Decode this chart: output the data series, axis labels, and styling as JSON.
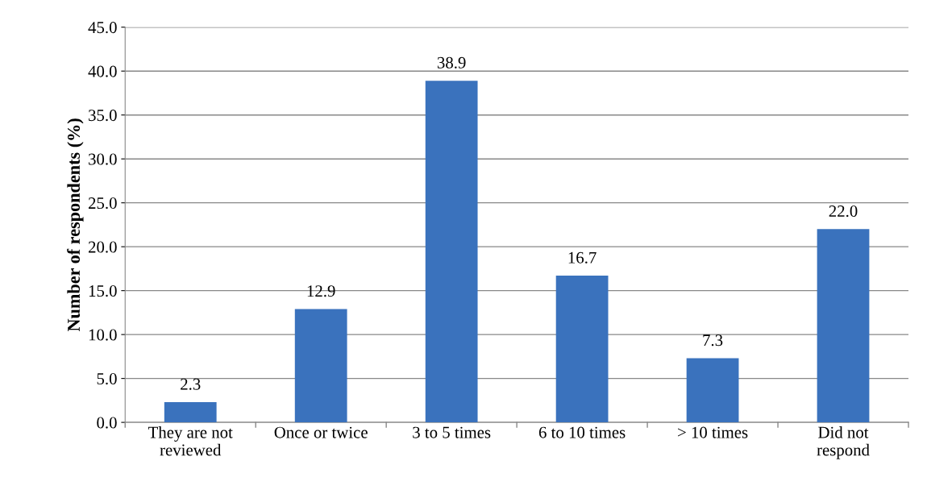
{
  "chart_data": {
    "type": "bar",
    "ylabel": "Number of respondents (%)",
    "categories": [
      "They are not\nreviewed",
      "Once or twice",
      "3 to 5 times",
      "6 to 10 times",
      "> 10 times",
      "Did not\nrespond"
    ],
    "values": [
      2.3,
      12.9,
      38.9,
      16.7,
      7.3,
      22.0
    ],
    "value_labels": [
      "2.3",
      "12.9",
      "38.9",
      "16.7",
      "7.3",
      "22.0"
    ],
    "color": "#3a72bd",
    "ylim": [
      0,
      45
    ],
    "yticks": [
      {
        "value": 0,
        "label": "0.0"
      },
      {
        "value": 5,
        "label": "5.0"
      },
      {
        "value": 10,
        "label": "10.0"
      },
      {
        "value": 15,
        "label": "15.0"
      },
      {
        "value": 20,
        "label": "20.0"
      },
      {
        "value": 25,
        "label": "25.0"
      },
      {
        "value": 30,
        "label": "30.0"
      },
      {
        "value": 35,
        "label": "35.0"
      },
      {
        "value": 40,
        "label": "40.0"
      },
      {
        "value": 45,
        "label": "45.0"
      }
    ],
    "grid": "y"
  }
}
